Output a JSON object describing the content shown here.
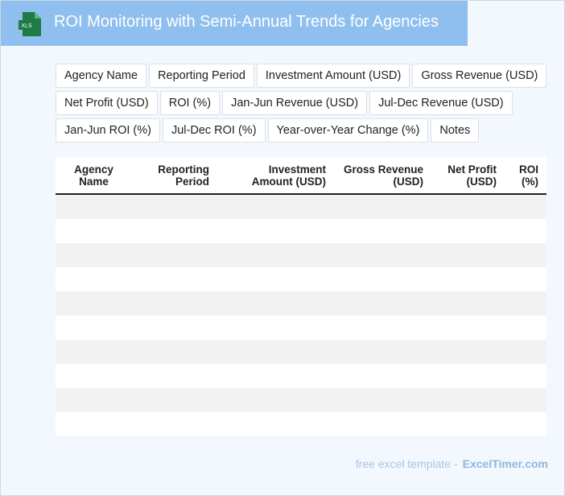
{
  "header": {
    "title": "ROI Monitoring with Semi-Annual Trends for Agencies",
    "file_icon_label": "XLS",
    "title_bar_color": "#8fbfef",
    "icon_color": "#1e7b45"
  },
  "field_chips": [
    "Agency Name",
    "Reporting Period",
    "Investment Amount (USD)",
    "Gross Revenue (USD)",
    "Net Profit (USD)",
    "ROI (%)",
    "Jan-Jun Revenue (USD)",
    "Jul-Dec Revenue (USD)",
    "Jan-Jun ROI (%)",
    "Jul-Dec ROI (%)",
    "Year-over-Year Change (%)",
    "Notes"
  ],
  "table": {
    "columns": [
      {
        "line1": "Agency",
        "line2": "Name"
      },
      {
        "line1": "Reporting",
        "line2": "Period"
      },
      {
        "line1": "Investment",
        "line2": "Amount (USD)"
      },
      {
        "line1": "Gross Revenue",
        "line2": "(USD)"
      },
      {
        "line1": "Net Profit",
        "line2": "(USD)"
      },
      {
        "line1": "ROI",
        "line2": "(%)"
      }
    ],
    "empty_row_count": 10
  },
  "footer": {
    "text": "free excel template -",
    "brand": "ExcelTimer.com"
  }
}
